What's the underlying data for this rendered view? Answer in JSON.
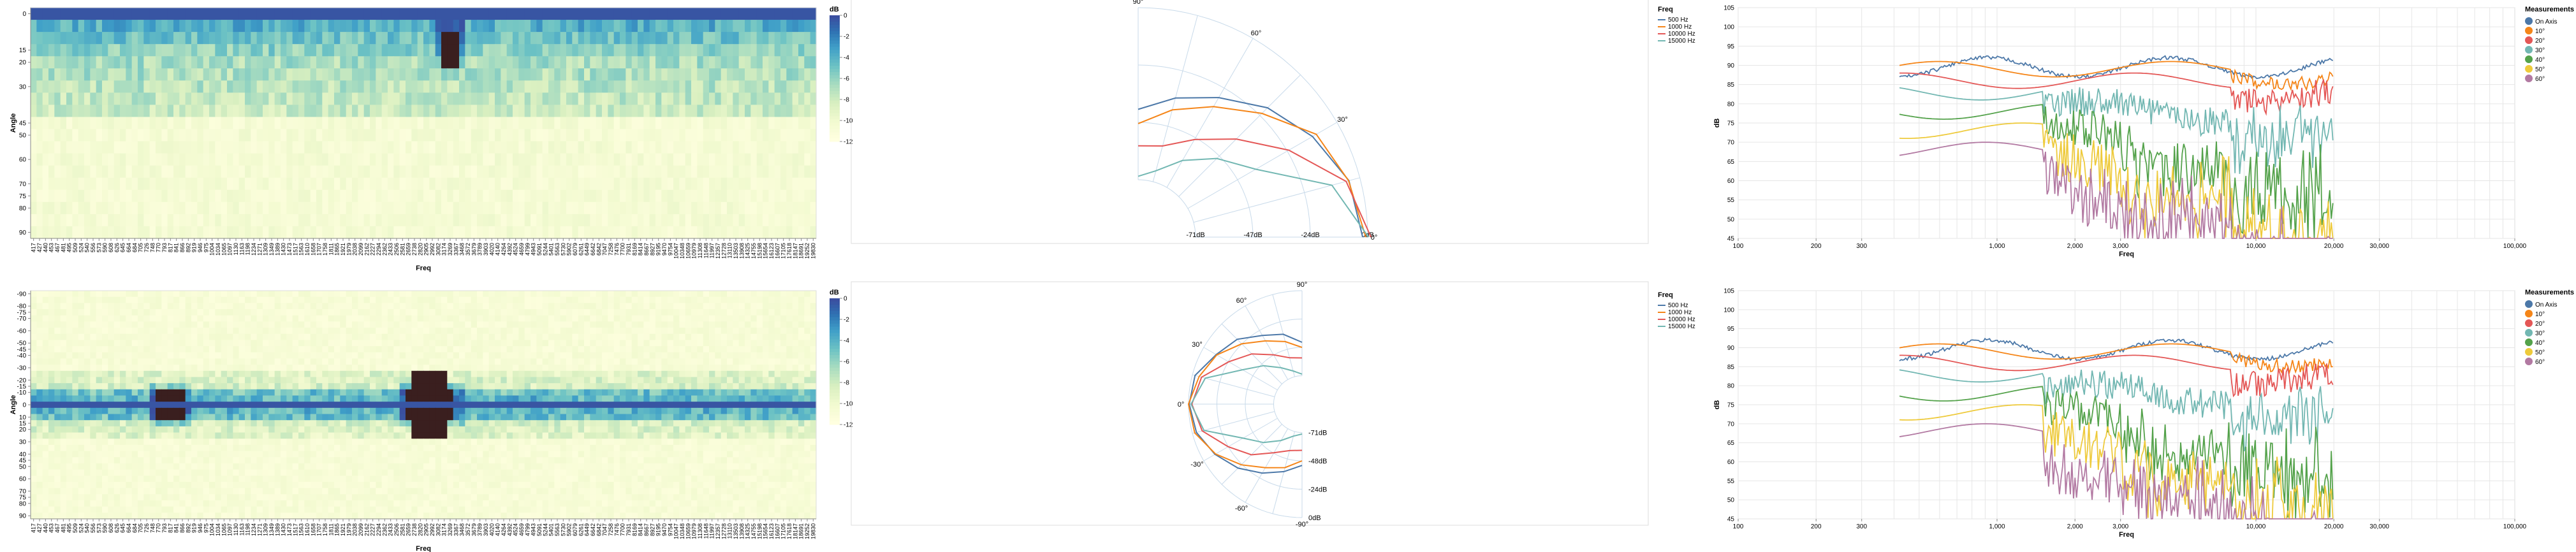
{
  "heatmap_top": {
    "ylabel": "Angle",
    "xlabel": "Freq",
    "legend_title": "dB",
    "y_ticks": [
      "0",
      "15",
      "20",
      "30",
      "45",
      "50",
      "60",
      "70",
      "75",
      "80",
      "90"
    ],
    "legend_ticks": [
      "0",
      "-2",
      "-4",
      "-6",
      "-8",
      "-10",
      "-12"
    ]
  },
  "heatmap_bottom": {
    "ylabel": "Angle",
    "xlabel": "Freq",
    "legend_title": "dB",
    "y_ticks": [
      "-90",
      "-80",
      "-75",
      "-70",
      "-60",
      "-50",
      "-45",
      "-40",
      "-30",
      "-20",
      "-15",
      "-10",
      "0",
      "10",
      "15",
      "20",
      "30",
      "40",
      "45",
      "50",
      "60",
      "70",
      "75",
      "80",
      "90"
    ],
    "legend_ticks": [
      "0",
      "-2",
      "-4",
      "-6",
      "-8",
      "-10",
      "-12"
    ]
  },
  "freq_ticks": [
    "417",
    "427",
    "440",
    "453",
    "467",
    "481",
    "495",
    "509",
    "524",
    "540",
    "556",
    "573",
    "590",
    "608",
    "626",
    "645",
    "664",
    "684",
    "705",
    "726",
    "748",
    "770",
    "793",
    "817",
    "841",
    "866",
    "892",
    "919",
    "946",
    "975",
    "1004",
    "1034",
    "1065",
    "1097",
    "1130",
    "1163",
    "1198",
    "1234",
    "1271",
    "1309",
    "1349",
    "1389",
    "1430",
    "1473",
    "1517",
    "1563",
    "1610",
    "1658",
    "1707",
    "1758",
    "1811",
    "1865",
    "1921",
    "1979",
    "2038",
    "2099",
    "2162",
    "2227",
    "2294",
    "2362",
    "2433",
    "2506",
    "2581",
    "2659",
    "2738",
    "2820",
    "2905",
    "2992",
    "3082",
    "3174",
    "3269",
    "3367",
    "3468",
    "3572",
    "3679",
    "3789",
    "3903",
    "4020",
    "4140",
    "4264",
    "4392",
    "4524",
    "4659",
    "4799",
    "4943",
    "5091",
    "5244",
    "5401",
    "5563",
    "5730",
    "5902",
    "6079",
    "6261",
    "6449",
    "6642",
    "6842",
    "7047",
    "7258",
    "7476",
    "7700",
    "7931",
    "8169",
    "8414",
    "8667",
    "8927",
    "9195",
    "9470",
    "9754",
    "10047",
    "10348",
    "10659",
    "10979",
    "11308",
    "11648",
    "11997",
    "12357",
    "12728",
    "13110",
    "13503",
    "13908",
    "14325",
    "14755",
    "15198",
    "15654",
    "16123",
    "16607",
    "17105",
    "17618",
    "18147",
    "18691",
    "19252",
    "19830"
  ],
  "polar_top": {
    "legend_title": "Freq",
    "angle_labels": [
      "90°",
      "60°",
      "30°",
      "0°"
    ],
    "radial_labels": [
      "-71dB",
      "-47dB",
      "-24dB",
      "0dB"
    ],
    "series": [
      {
        "name": "500 Hz",
        "color": "#4c78a8"
      },
      {
        "name": "1000 Hz",
        "color": "#f58518"
      },
      {
        "name": "10000 Hz",
        "color": "#e45756"
      },
      {
        "name": "15000 Hz",
        "color": "#72b7b2"
      }
    ]
  },
  "polar_bottom": {
    "legend_title": "Freq",
    "angle_labels": [
      "90°",
      "60°",
      "30°",
      "0°",
      "-30°",
      "-60°",
      "-90°"
    ],
    "radial_labels": [
      "-71dB",
      "-48dB",
      "-24dB",
      "0dB"
    ],
    "series": [
      {
        "name": "500 Hz",
        "color": "#4c78a8"
      },
      {
        "name": "1000 Hz",
        "color": "#f58518"
      },
      {
        "name": "10000 Hz",
        "color": "#e45756"
      },
      {
        "name": "15000 Hz",
        "color": "#72b7b2"
      }
    ]
  },
  "freq_top": {
    "ylabel": "dB",
    "xlabel": "Freq",
    "legend_title": "Measurements",
    "y_ticks": [
      "45",
      "50",
      "55",
      "60",
      "65",
      "70",
      "75",
      "80",
      "85",
      "90",
      "95",
      "100",
      "105"
    ],
    "x_ticks": [
      "100",
      "200",
      "300",
      "1,000",
      "2,000",
      "3,000",
      "10,000",
      "20,000",
      "30,000",
      "100,000"
    ],
    "series": [
      {
        "name": "On Axis",
        "color": "#4c78a8"
      },
      {
        "name": "10°",
        "color": "#f58518"
      },
      {
        "name": "20°",
        "color": "#e45756"
      },
      {
        "name": "30°",
        "color": "#72b7b2"
      },
      {
        "name": "40°",
        "color": "#54a24b"
      },
      {
        "name": "50°",
        "color": "#eeca3b"
      },
      {
        "name": "60°",
        "color": "#b279a2"
      }
    ]
  },
  "freq_bottom": {
    "ylabel": "dB",
    "xlabel": "Freq",
    "legend_title": "Measurements",
    "y_ticks": [
      "45",
      "50",
      "55",
      "60",
      "65",
      "70",
      "75",
      "80",
      "85",
      "90",
      "95",
      "100",
      "105"
    ],
    "x_ticks": [
      "100",
      "200",
      "300",
      "1,000",
      "2,000",
      "3,000",
      "10,000",
      "20,000",
      "30,000",
      "100,000"
    ],
    "series": [
      {
        "name": "On Axis",
        "color": "#4c78a8"
      },
      {
        "name": "10°",
        "color": "#f58518"
      },
      {
        "name": "20°",
        "color": "#e45756"
      },
      {
        "name": "30°",
        "color": "#72b7b2"
      },
      {
        "name": "40°",
        "color": "#54a24b"
      },
      {
        "name": "50°",
        "color": "#eeca3b"
      },
      {
        "name": "60°",
        "color": "#b279a2"
      }
    ]
  },
  "chart_data": [
    {
      "type": "heatmap",
      "xlabel": "Freq",
      "ylabel": "Angle",
      "legend": "dB",
      "x_range": [
        417,
        19830
      ],
      "y_range": [
        0,
        90
      ],
      "z_range": [
        -12,
        0
      ]
    },
    {
      "type": "line",
      "subtype": "polar",
      "legend": "Freq",
      "series_names": [
        "500 Hz",
        "1000 Hz",
        "10000 Hz",
        "15000 Hz"
      ],
      "theta_range": [
        0,
        90
      ],
      "r_range": [
        -71,
        0
      ]
    },
    {
      "type": "line",
      "xlabel": "Freq",
      "ylabel": "dB",
      "x_scale": "log",
      "xlim": [
        100,
        100000
      ],
      "ylim": [
        45,
        105
      ],
      "legend": "Measurements",
      "series_names": [
        "On Axis",
        "10°",
        "20°",
        "30°",
        "40°",
        "50°",
        "60°"
      ]
    },
    {
      "type": "heatmap",
      "xlabel": "Freq",
      "ylabel": "Angle",
      "legend": "dB",
      "x_range": [
        417,
        19830
      ],
      "y_range": [
        -90,
        90
      ],
      "z_range": [
        -12,
        0
      ]
    },
    {
      "type": "line",
      "subtype": "polar",
      "legend": "Freq",
      "series_names": [
        "500 Hz",
        "1000 Hz",
        "10000 Hz",
        "15000 Hz"
      ],
      "theta_range": [
        -90,
        90
      ],
      "r_range": [
        -71,
        0
      ]
    },
    {
      "type": "line",
      "xlabel": "Freq",
      "ylabel": "dB",
      "x_scale": "log",
      "xlim": [
        100,
        100000
      ],
      "ylim": [
        45,
        105
      ],
      "legend": "Measurements",
      "series_names": [
        "On Axis",
        "10°",
        "20°",
        "30°",
        "40°",
        "50°",
        "60°"
      ]
    }
  ]
}
